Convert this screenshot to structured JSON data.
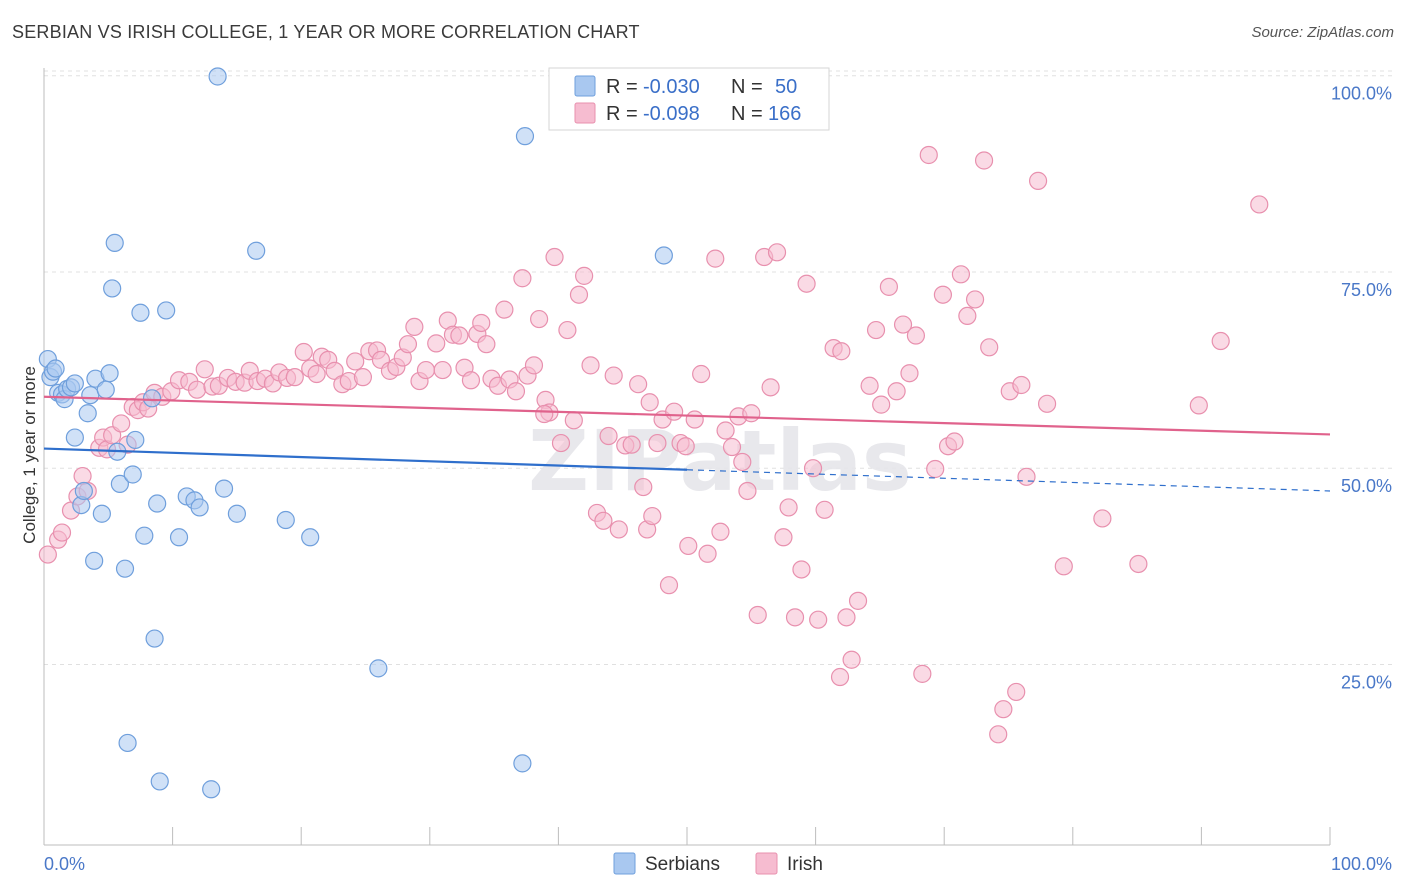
{
  "title": "SERBIAN VS IRISH COLLEGE, 1 YEAR OR MORE CORRELATION CHART",
  "source": "Source: ZipAtlas.com",
  "watermark": "ZIPatlas",
  "colors": {
    "serbians_fill": "#a9c8f0",
    "serbians_stroke": "#6f9fdc",
    "serbians_line": "#2f6fcc",
    "irish_fill": "#f6bcd0",
    "irish_stroke": "#e890ae",
    "irish_line": "#e0628c",
    "tick_text": "#4a78c8",
    "grid": "#e0e0e0"
  },
  "legend": {
    "rows": [
      {
        "r_label": "R =",
        "r_value": "-0.030",
        "n_label": "N =",
        "n_value": "50"
      },
      {
        "r_label": "R =",
        "r_value": "-0.098",
        "n_label": "N =",
        "n_value": "166"
      }
    ]
  },
  "bottom_legend": [
    "Serbians",
    "Irish"
  ],
  "chart_data": {
    "type": "scatter",
    "title": "SERBIAN VS IRISH COLLEGE, 1 YEAR OR MORE CORRELATION CHART",
    "ylabel": "College, 1 year or more",
    "xlabel": "",
    "x_tick_labels": [
      "0.0%",
      "100.0%"
    ],
    "y_tick_labels": [
      "100.0%",
      "75.0%",
      "50.0%",
      "25.0%"
    ],
    "y_ticks": [
      100,
      75,
      50,
      25
    ],
    "xlim": [
      0,
      100
    ],
    "ylim": [
      2,
      102
    ],
    "grid": true,
    "legend_position": "top-center",
    "series": [
      {
        "name": "Serbians",
        "R": -0.03,
        "N": 50,
        "trend": {
          "x0": 0,
          "y0": 52.5,
          "x1": 50,
          "y1": 49.8,
          "dashed_to_x": 100,
          "dashed_to_y": 47.1
        },
        "points": [
          [
            0.3,
            63.9
          ],
          [
            0.5,
            61.6
          ],
          [
            0.7,
            62.3
          ],
          [
            0.9,
            62.7
          ],
          [
            1.1,
            59.6
          ],
          [
            1.4,
            59.4
          ],
          [
            1.6,
            58.8
          ],
          [
            1.8,
            60.1
          ],
          [
            2.1,
            60.3
          ],
          [
            2.4,
            60.8
          ],
          [
            2.4,
            53.9
          ],
          [
            2.9,
            45.3
          ],
          [
            3.1,
            47.1
          ],
          [
            3.4,
            57.0
          ],
          [
            3.6,
            59.3
          ],
          [
            3.9,
            38.2
          ],
          [
            4.0,
            61.4
          ],
          [
            4.5,
            44.2
          ],
          [
            4.8,
            60.0
          ],
          [
            5.1,
            62.1
          ],
          [
            5.3,
            72.9
          ],
          [
            5.5,
            78.7
          ],
          [
            5.7,
            52.1
          ],
          [
            5.9,
            48.0
          ],
          [
            6.3,
            37.2
          ],
          [
            6.5,
            15.0
          ],
          [
            6.9,
            49.2
          ],
          [
            7.1,
            53.6
          ],
          [
            7.5,
            69.8
          ],
          [
            7.8,
            41.4
          ],
          [
            8.4,
            58.9
          ],
          [
            8.6,
            28.3
          ],
          [
            8.8,
            45.5
          ],
          [
            9.0,
            10.1
          ],
          [
            9.5,
            70.1
          ],
          [
            10.5,
            41.2
          ],
          [
            11.1,
            46.4
          ],
          [
            11.7,
            45.9
          ],
          [
            12.1,
            45.0
          ],
          [
            13.0,
            9.1
          ],
          [
            13.5,
            99.9
          ],
          [
            14.0,
            47.4
          ],
          [
            15.0,
            44.2
          ],
          [
            16.5,
            77.7
          ],
          [
            18.8,
            43.4
          ],
          [
            20.7,
            41.2
          ],
          [
            26.0,
            24.5
          ],
          [
            37.2,
            12.4
          ],
          [
            37.4,
            92.3
          ],
          [
            48.2,
            77.1
          ]
        ]
      },
      {
        "name": "Irish",
        "R": -0.098,
        "N": 166,
        "trend": {
          "x0": 0,
          "y0": 59.1,
          "x1": 100,
          "y1": 54.3
        },
        "points": [
          [
            0.3,
            39.0
          ],
          [
            1.1,
            40.9
          ],
          [
            1.4,
            41.8
          ],
          [
            2.1,
            44.6
          ],
          [
            2.6,
            46.4
          ],
          [
            3.0,
            49.0
          ],
          [
            3.4,
            47.1
          ],
          [
            4.3,
            52.6
          ],
          [
            4.6,
            53.9
          ],
          [
            4.9,
            52.4
          ],
          [
            5.3,
            54.2
          ],
          [
            6.0,
            55.7
          ],
          [
            6.5,
            53.0
          ],
          [
            6.9,
            57.8
          ],
          [
            7.3,
            57.4
          ],
          [
            7.7,
            58.4
          ],
          [
            8.1,
            57.6
          ],
          [
            8.6,
            59.6
          ],
          [
            9.2,
            59.1
          ],
          [
            9.9,
            59.8
          ],
          [
            10.5,
            61.2
          ],
          [
            11.3,
            61.0
          ],
          [
            11.9,
            60.0
          ],
          [
            12.5,
            62.6
          ],
          [
            13.1,
            60.4
          ],
          [
            13.6,
            60.5
          ],
          [
            14.3,
            61.5
          ],
          [
            14.9,
            61.0
          ],
          [
            15.6,
            60.9
          ],
          [
            16.0,
            62.4
          ],
          [
            16.6,
            61.1
          ],
          [
            17.2,
            61.4
          ],
          [
            17.8,
            60.8
          ],
          [
            18.3,
            62.2
          ],
          [
            18.9,
            61.5
          ],
          [
            19.5,
            61.6
          ],
          [
            20.2,
            64.8
          ],
          [
            20.7,
            62.7
          ],
          [
            21.2,
            62.0
          ],
          [
            21.6,
            64.2
          ],
          [
            22.1,
            63.8
          ],
          [
            22.6,
            62.4
          ],
          [
            23.2,
            60.7
          ],
          [
            23.7,
            61.1
          ],
          [
            24.2,
            63.6
          ],
          [
            24.8,
            61.6
          ],
          [
            25.3,
            64.9
          ],
          [
            25.9,
            65.0
          ],
          [
            26.2,
            63.8
          ],
          [
            26.9,
            62.4
          ],
          [
            27.4,
            62.9
          ],
          [
            27.9,
            64.1
          ],
          [
            28.3,
            65.8
          ],
          [
            28.8,
            68.0
          ],
          [
            29.2,
            61.1
          ],
          [
            29.7,
            62.5
          ],
          [
            30.5,
            65.9
          ],
          [
            31.0,
            62.5
          ],
          [
            31.4,
            68.8
          ],
          [
            31.8,
            67.0
          ],
          [
            32.3,
            66.9
          ],
          [
            32.7,
            62.8
          ],
          [
            33.2,
            61.2
          ],
          [
            33.7,
            67.1
          ],
          [
            34.0,
            68.5
          ],
          [
            34.4,
            65.8
          ],
          [
            34.8,
            61.4
          ],
          [
            35.3,
            60.5
          ],
          [
            35.8,
            70.2
          ],
          [
            36.2,
            61.3
          ],
          [
            36.7,
            59.8
          ],
          [
            37.2,
            74.2
          ],
          [
            37.6,
            61.8
          ],
          [
            38.1,
            63.1
          ],
          [
            38.5,
            69.0
          ],
          [
            39.0,
            58.7
          ],
          [
            39.3,
            57.1
          ],
          [
            39.7,
            76.9
          ],
          [
            40.2,
            53.2
          ],
          [
            40.7,
            67.6
          ],
          [
            41.2,
            56.1
          ],
          [
            41.6,
            72.1
          ],
          [
            42.0,
            74.5
          ],
          [
            42.5,
            63.1
          ],
          [
            43.0,
            44.3
          ],
          [
            43.5,
            43.3
          ],
          [
            43.9,
            54.1
          ],
          [
            44.3,
            61.8
          ],
          [
            44.7,
            42.2
          ],
          [
            45.2,
            52.9
          ],
          [
            45.7,
            53.0
          ],
          [
            46.2,
            60.7
          ],
          [
            46.6,
            47.6
          ],
          [
            46.9,
            42.2
          ],
          [
            47.3,
            43.9
          ],
          [
            47.7,
            53.2
          ],
          [
            48.1,
            56.2
          ],
          [
            48.6,
            35.1
          ],
          [
            49.0,
            57.2
          ],
          [
            49.5,
            53.2
          ],
          [
            50.1,
            40.1
          ],
          [
            50.6,
            56.2
          ],
          [
            51.1,
            62.0
          ],
          [
            51.6,
            39.1
          ],
          [
            52.2,
            76.7
          ],
          [
            52.6,
            41.9
          ],
          [
            53.0,
            54.8
          ],
          [
            53.5,
            52.7
          ],
          [
            54.0,
            56.6
          ],
          [
            54.3,
            50.8
          ],
          [
            55.0,
            57.0
          ],
          [
            55.5,
            31.3
          ],
          [
            56.0,
            76.9
          ],
          [
            56.5,
            60.3
          ],
          [
            57.0,
            77.5
          ],
          [
            57.5,
            41.2
          ],
          [
            57.9,
            45.0
          ],
          [
            58.4,
            31.0
          ],
          [
            58.9,
            37.1
          ],
          [
            59.3,
            73.5
          ],
          [
            59.8,
            50.0
          ],
          [
            60.2,
            30.7
          ],
          [
            60.7,
            44.7
          ],
          [
            61.4,
            65.3
          ],
          [
            61.9,
            23.4
          ],
          [
            62.4,
            31.0
          ],
          [
            62.8,
            25.6
          ],
          [
            63.3,
            33.1
          ],
          [
            64.2,
            60.5
          ],
          [
            64.7,
            67.6
          ],
          [
            65.1,
            58.1
          ],
          [
            65.7,
            73.1
          ],
          [
            66.3,
            59.8
          ],
          [
            66.8,
            68.3
          ],
          [
            67.3,
            62.1
          ],
          [
            67.8,
            66.9
          ],
          [
            68.3,
            23.8
          ],
          [
            68.8,
            89.9
          ],
          [
            69.3,
            49.9
          ],
          [
            69.9,
            72.1
          ],
          [
            70.3,
            52.8
          ],
          [
            70.8,
            53.4
          ],
          [
            71.3,
            74.7
          ],
          [
            71.8,
            69.4
          ],
          [
            72.4,
            71.5
          ],
          [
            73.1,
            89.2
          ],
          [
            73.5,
            65.4
          ],
          [
            74.2,
            16.1
          ],
          [
            74.6,
            19.3
          ],
          [
            75.1,
            59.8
          ],
          [
            75.6,
            21.5
          ],
          [
            76.0,
            60.6
          ],
          [
            76.4,
            48.9
          ],
          [
            77.3,
            86.6
          ],
          [
            78.0,
            58.2
          ],
          [
            79.3,
            37.5
          ],
          [
            82.3,
            43.6
          ],
          [
            85.1,
            37.8
          ],
          [
            91.5,
            66.2
          ],
          [
            94.5,
            83.6
          ],
          [
            89.8,
            58.0
          ],
          [
            62.0,
            64.9
          ],
          [
            54.7,
            47.1
          ],
          [
            38.9,
            56.9
          ],
          [
            47.1,
            58.4
          ],
          [
            49.9,
            52.8
          ]
        ]
      }
    ]
  }
}
